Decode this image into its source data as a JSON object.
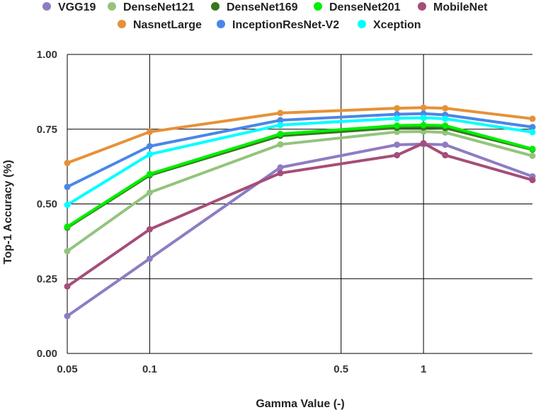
{
  "chart_data": {
    "type": "line",
    "title": "",
    "xlabel": "Gamma Value (-)",
    "ylabel": "Top-1 Accuracy  (%)",
    "x_scale": "log",
    "xlim": [
      0.05,
      2.5
    ],
    "ylim": [
      0,
      1
    ],
    "x_ticks": [
      {
        "value": 0.05,
        "label": "0.05"
      },
      {
        "value": 0.1,
        "label": "0.1"
      },
      {
        "value": 0.5,
        "label": "0.5"
      },
      {
        "value": 1,
        "label": "1"
      }
    ],
    "y_ticks": [
      {
        "value": 0,
        "label": "0.00"
      },
      {
        "value": 0.25,
        "label": "0.25"
      },
      {
        "value": 0.5,
        "label": "0.50"
      },
      {
        "value": 0.75,
        "label": "0.75"
      },
      {
        "value": 1,
        "label": "1.00"
      }
    ],
    "grid": true,
    "legend_position": "top",
    "x": [
      0.05,
      0.1,
      0.3,
      0.8,
      1,
      1.2,
      2.5
    ],
    "series": [
      {
        "name": "VGG19",
        "color": "#8e7cc3",
        "values": [
          0.125,
          0.317,
          0.622,
          0.698,
          0.7,
          0.698,
          0.592
        ]
      },
      {
        "name": "DenseNet121",
        "color": "#93c47d",
        "values": [
          0.342,
          0.538,
          0.699,
          0.741,
          0.742,
          0.739,
          0.661
        ]
      },
      {
        "name": "DenseNet169",
        "color": "#38761d",
        "values": [
          0.421,
          0.596,
          0.728,
          0.755,
          0.756,
          0.754,
          0.682
        ]
      },
      {
        "name": "DenseNet201",
        "color": "#00ee00",
        "values": [
          0.424,
          0.6,
          0.734,
          0.762,
          0.764,
          0.762,
          0.684
        ]
      },
      {
        "name": "MobileNet",
        "color": "#a64d79",
        "values": [
          0.224,
          0.415,
          0.603,
          0.663,
          0.703,
          0.663,
          0.58
        ]
      },
      {
        "name": "NasnetLarge",
        "color": "#e69138",
        "values": [
          0.637,
          0.741,
          0.804,
          0.82,
          0.822,
          0.82,
          0.785
        ]
      },
      {
        "name": "InceptionResNet-V2",
        "color": "#4a86e8",
        "values": [
          0.557,
          0.693,
          0.78,
          0.8,
          0.802,
          0.798,
          0.757
        ]
      },
      {
        "name": "Xception",
        "color": "#00ffff",
        "values": [
          0.497,
          0.666,
          0.764,
          0.786,
          0.788,
          0.785,
          0.74
        ]
      }
    ]
  }
}
